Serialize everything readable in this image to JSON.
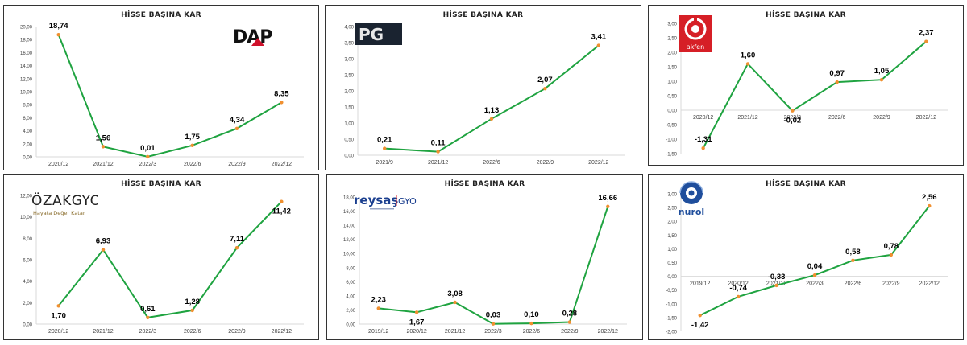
{
  "colors": {
    "line": "#1fa340",
    "marker": "#f09030",
    "axis": "#d9d9d9",
    "tick": "#404040",
    "label": "#000000"
  },
  "panels": [
    {
      "title": "HİSSE BAŞINA KAR",
      "logo": {
        "text": "DAP",
        "icon": "dap-logo-icon"
      }
    },
    {
      "title": "HİSSE BAŞINA KAR",
      "logo": {
        "text": "PG",
        "icon": "pg-logo-icon"
      }
    },
    {
      "title": "HİSSE BAŞINA KAR",
      "logo": {
        "text": "akfen",
        "icon": "akfen-logo-icon"
      }
    },
    {
      "title": "HİSSE BAŞINA KAR",
      "logo": {
        "text": "ÖZAKGYO",
        "tagline": "Hayata Değer Katar",
        "icon": "ozak-logo-icon"
      }
    },
    {
      "title": "HİSSE BAŞINA KAR",
      "logo": {
        "text": "reysaş",
        "text2": "GYO",
        "icon": "reysas-logo-icon"
      }
    },
    {
      "title": "HİSSE BAŞINA KAR",
      "logo": {
        "text": "nurol",
        "icon": "nurol-logo-icon"
      }
    }
  ],
  "chart_data": [
    {
      "type": "line",
      "title": "HİSSE BAŞINA KAR",
      "categories": [
        "2020/12",
        "2021/12",
        "2022/3",
        "2022/6",
        "2022/9",
        "2022/12"
      ],
      "values": [
        18.74,
        1.56,
        0.01,
        1.75,
        4.34,
        8.35
      ],
      "data_labels": [
        "18,74",
        "1,56",
        "0,01",
        "1,75",
        "4,34",
        "8,35"
      ],
      "yticks": [
        "0,00",
        "2,00",
        "4,00",
        "6,00",
        "8,00",
        "10,00",
        "12,00",
        "14,00",
        "16,00",
        "18,00",
        "20,00"
      ],
      "ylim": [
        0,
        20
      ],
      "grid": false,
      "legend": "none"
    },
    {
      "type": "line",
      "title": "HİSSE BAŞINA KAR",
      "categories": [
        "2021/9",
        "2021/12",
        "2022/6",
        "2022/9",
        "2022/12"
      ],
      "values": [
        0.21,
        0.11,
        1.13,
        2.07,
        3.41
      ],
      "data_labels": [
        "0,21",
        "0,11",
        "1,13",
        "2,07",
        "3,41"
      ],
      "yticks": [
        "0,00",
        "0,50",
        "1,00",
        "1,50",
        "2,00",
        "2,50",
        "3,00",
        "3,50",
        "4,00"
      ],
      "ylim": [
        0,
        4
      ],
      "grid": false,
      "legend": "none"
    },
    {
      "type": "line",
      "title": "HİSSE BAŞINA KAR",
      "categories": [
        "2020/12",
        "2021/12",
        "2022/3",
        "2022/6",
        "2022/9",
        "2022/12"
      ],
      "values": [
        -1.31,
        1.6,
        -0.02,
        0.97,
        1.05,
        2.37
      ],
      "data_labels": [
        "-1,31",
        "1,60",
        "-0,02",
        "0,97",
        "1,05",
        "2,37"
      ],
      "yticks": [
        "-1,50",
        "-1,00",
        "-0,50",
        "0,00",
        "0,50",
        "1,00",
        "1,50",
        "2,00",
        "2,50",
        "3,00"
      ],
      "ylim": [
        -1.5,
        3
      ],
      "grid": false,
      "legend": "none"
    },
    {
      "type": "line",
      "title": "HİSSE BAŞINA KAR",
      "categories": [
        "2020/12",
        "2021/12",
        "2022/3",
        "2022/6",
        "2022/9",
        "2022/12"
      ],
      "values": [
        1.7,
        6.93,
        0.61,
        1.28,
        7.11,
        11.42
      ],
      "data_labels": [
        "1,70",
        "6,93",
        "0,61",
        "1,28",
        "7,11",
        "11,42"
      ],
      "yticks": [
        "0,00",
        "2,00",
        "4,00",
        "6,00",
        "8,00",
        "10,00",
        "12,00"
      ],
      "ylim": [
        0,
        12
      ],
      "grid": false,
      "legend": "none"
    },
    {
      "type": "line",
      "title": "HİSSE BAŞINA KAR",
      "categories": [
        "2019/12",
        "2020/12",
        "2021/12",
        "2022/3",
        "2022/6",
        "2022/9",
        "2022/12"
      ],
      "values": [
        2.23,
        1.67,
        3.08,
        0.03,
        0.1,
        0.28,
        16.66
      ],
      "data_labels": [
        "2,23",
        "1,67",
        "3,08",
        "0,03",
        "0,10",
        "0,28",
        "16,66"
      ],
      "yticks": [
        "0,00",
        "2,00",
        "4,00",
        "6,00",
        "8,00",
        "10,00",
        "12,00",
        "14,00",
        "16,00",
        "18,00"
      ],
      "ylim": [
        0,
        18
      ],
      "grid": false,
      "legend": "none"
    },
    {
      "type": "line",
      "title": "HİSSE BAŞINA KAR",
      "categories": [
        "2019/12",
        "2020/12",
        "2021/12",
        "2022/3",
        "2022/6",
        "2022/9",
        "2022/12"
      ],
      "values": [
        -1.42,
        -0.74,
        -0.33,
        0.04,
        0.58,
        0.78,
        2.56
      ],
      "data_labels": [
        "-1,42",
        "-0,74",
        "-0,33",
        "0,04",
        "0,58",
        "0,78",
        "2,56"
      ],
      "yticks": [
        "-2,00",
        "-1,50",
        "-1,00",
        "-0,50",
        "0,00",
        "0,50",
        "1,00",
        "1,50",
        "2,00",
        "2,50",
        "3,00"
      ],
      "ylim": [
        -2,
        3
      ],
      "grid": false,
      "legend": "none"
    }
  ]
}
